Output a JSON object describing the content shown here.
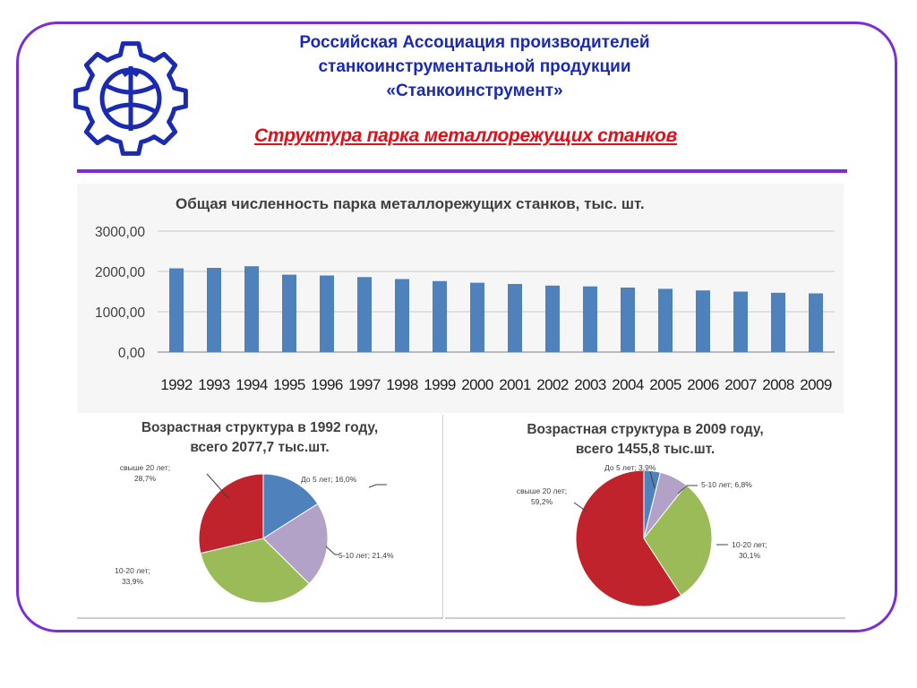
{
  "header": {
    "org_line1": "Российская Ассоциация производителей",
    "org_line2": "станкоинструментальной продукции",
    "org_line3": "«Станкоинструмент»",
    "subtitle": "Структура парка металлорежущих станков"
  },
  "logo": {
    "icon": "gear-logo-icon",
    "color": "#1a2bb0"
  },
  "colors": {
    "accent": "#7a2fd6",
    "title_blue": "#1a2bb0",
    "subtitle_red": "#e0101a",
    "bar": "#4f81bd"
  },
  "chart_data": [
    {
      "type": "bar",
      "title": "Общая численность парка металлорежущих станков, тыс. шт.",
      "categories": [
        "1992",
        "1993",
        "1994",
        "1995",
        "1996",
        "1997",
        "1998",
        "1999",
        "2000",
        "2001",
        "2002",
        "2003",
        "2004",
        "2005",
        "2006",
        "2007",
        "2008",
        "2009"
      ],
      "values": [
        2077.7,
        2090,
        2130,
        1920,
        1900,
        1860,
        1810,
        1760,
        1720,
        1690,
        1650,
        1630,
        1600,
        1570,
        1530,
        1500,
        1470,
        1455.8
      ],
      "yticks": [
        "0,00",
        "1000,00",
        "2000,00",
        "3000,00"
      ],
      "ylim": [
        0,
        3000
      ],
      "grid": true,
      "legend": "none"
    },
    {
      "type": "pie",
      "title_line1": "Возрастная структура в 1992 году,",
      "title_line2": "всего 2077,7 тыс.шт.",
      "slices": [
        {
          "label": "До 5 лет; 16,0%",
          "value": 16.0,
          "color": "#4f81bd"
        },
        {
          "label": "5-10 лет; 21,4%",
          "value": 21.4,
          "color": "#b3a2c7"
        },
        {
          "label_line1": "10-20 лет;",
          "label_line2": "33,9%",
          "value": 33.9,
          "color": "#9bbb59"
        },
        {
          "label_line1": "свыше 20 лет;",
          "label_line2": "28,7%",
          "value": 28.7,
          "color": "#c0232c"
        }
      ]
    },
    {
      "type": "pie",
      "title_line1": "Возрастная структура в 2009 году,",
      "title_line2": "всего 1455,8 тыс.шт.",
      "slices": [
        {
          "label": "До 5 лет; 3,9%",
          "value": 3.9,
          "color": "#4f81bd"
        },
        {
          "label": "5-10 лет; 6,8%",
          "value": 6.8,
          "color": "#b3a2c7"
        },
        {
          "label_line1": "10-20 лет;",
          "label_line2": "30,1%",
          "value": 30.1,
          "color": "#9bbb59"
        },
        {
          "label_line1": "свыше 20 лет;",
          "label_line2": "59,2%",
          "value": 59.2,
          "color": "#c0232c"
        }
      ]
    }
  ]
}
